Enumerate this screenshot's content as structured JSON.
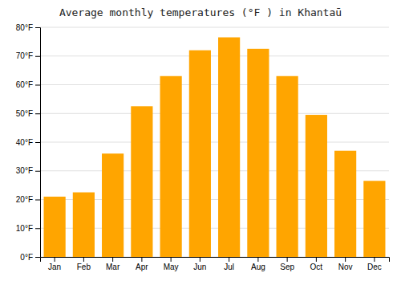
{
  "chart_data": {
    "type": "bar",
    "title": "Average monthly temperatures (°F ) in Khantaū",
    "categories": [
      "Jan",
      "Feb",
      "Mar",
      "Apr",
      "May",
      "Jun",
      "Jul",
      "Aug",
      "Sep",
      "Oct",
      "Nov",
      "Dec"
    ],
    "values": [
      21,
      22.5,
      36,
      52.5,
      63,
      72,
      76.5,
      72.5,
      63,
      49.5,
      37,
      26.5
    ],
    "color": "#FFA500",
    "ylim": [
      0,
      80
    ],
    "yticks": [
      {
        "value": 0,
        "label": "0°F"
      },
      {
        "value": 10,
        "label": "10°F"
      },
      {
        "value": 20,
        "label": "20°F"
      },
      {
        "value": 30,
        "label": "30°F"
      },
      {
        "value": 40,
        "label": "40°F"
      },
      {
        "value": 50,
        "label": "50°F"
      },
      {
        "value": 60,
        "label": "60°F"
      },
      {
        "value": 70,
        "label": "70°F"
      },
      {
        "value": 80,
        "label": "80°F"
      }
    ],
    "grid": true
  }
}
